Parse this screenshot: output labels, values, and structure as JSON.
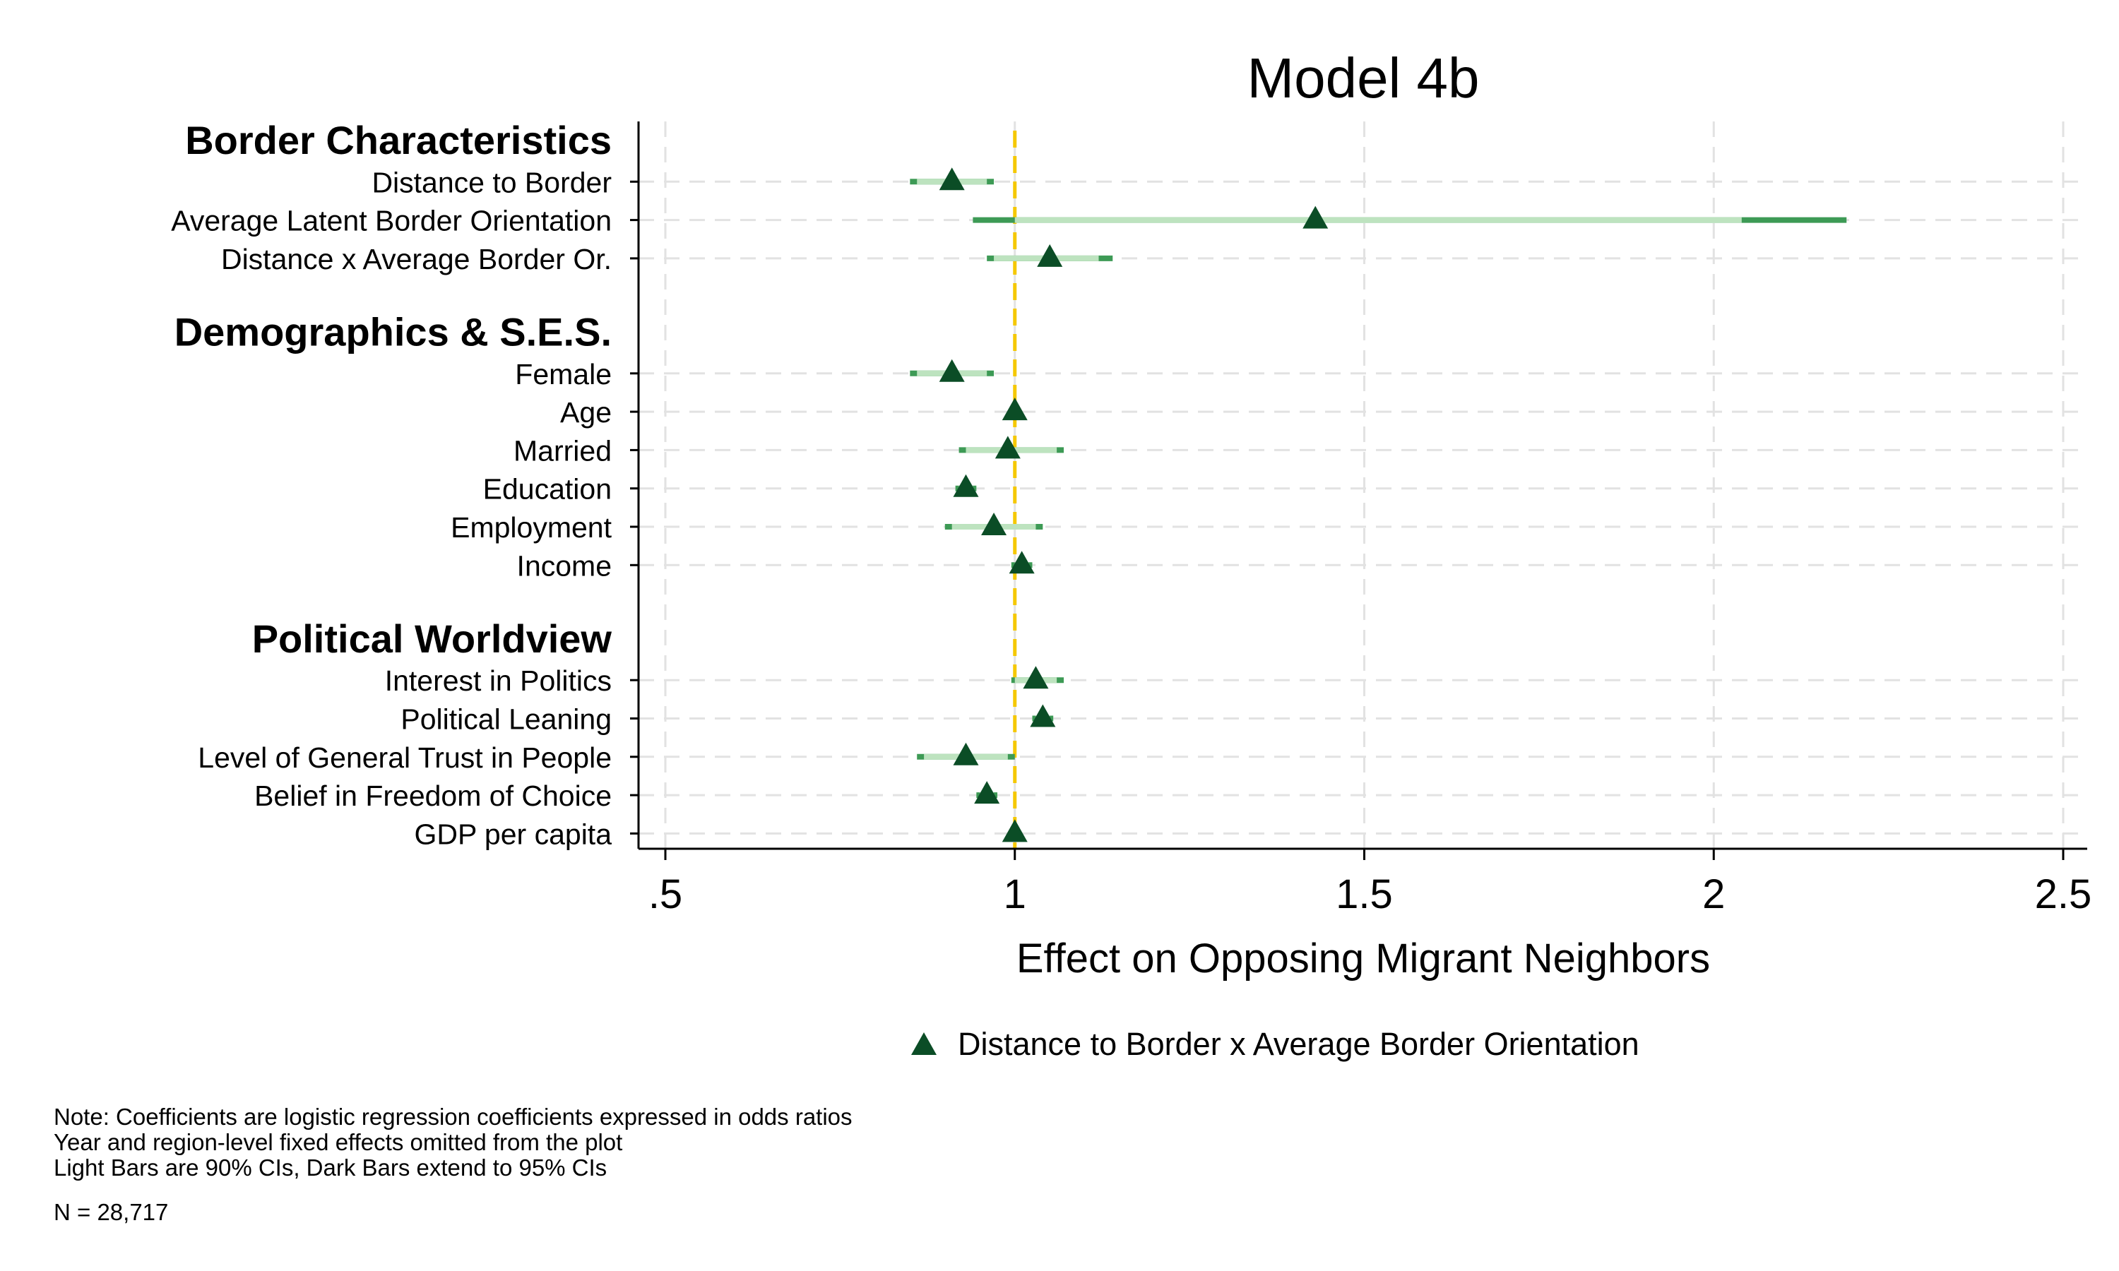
{
  "chart_data": {
    "type": "coefficient-plot",
    "title": "Model 4b",
    "xlabel": "Effect on Opposing Migrant Neighbors",
    "xlim": [
      0.5,
      2.5
    ],
    "xticks": [
      0.5,
      1,
      1.5,
      2,
      2.5
    ],
    "xtick_labels": [
      ".5",
      "1",
      "1.5",
      "2",
      "2.5"
    ],
    "reference_line": 1,
    "grid": true,
    "legend": {
      "placement": "bottom",
      "entries": [
        "Distance to Border x Average Border Orientation"
      ]
    },
    "colors": {
      "marker": "#0b4d26",
      "ci95": "#3d9a55",
      "ci90": "#bde3bf",
      "refline": "#f5c800",
      "grid": "#e2e2e2"
    },
    "groups": [
      {
        "heading": "Border Characteristics",
        "items": [
          {
            "label": "Distance to Border",
            "est": 0.91,
            "ci90": [
              0.86,
              0.96
            ],
            "ci95": [
              0.85,
              0.97
            ]
          },
          {
            "label": "Average Latent Border Orientation",
            "est": 1.43,
            "ci90": [
              1.0,
              2.04
            ],
            "ci95": [
              0.94,
              2.19
            ]
          },
          {
            "label": "Distance x Average Border Or.",
            "est": 1.05,
            "ci90": [
              0.97,
              1.12
            ],
            "ci95": [
              0.96,
              1.14
            ]
          }
        ]
      },
      {
        "heading": "Demographics & S.E.S.",
        "items": [
          {
            "label": "Female",
            "est": 0.91,
            "ci90": [
              0.86,
              0.96
            ],
            "ci95": [
              0.85,
              0.97
            ]
          },
          {
            "label": "Age",
            "est": 1.0,
            "ci90": [
              0.995,
              1.005
            ],
            "ci95": [
              0.993,
              1.007
            ]
          },
          {
            "label": "Married",
            "est": 0.99,
            "ci90": [
              0.93,
              1.06
            ],
            "ci95": [
              0.92,
              1.07
            ]
          },
          {
            "label": "Education",
            "est": 0.93,
            "ci90": [
              0.92,
              0.94
            ],
            "ci95": [
              0.915,
              0.945
            ]
          },
          {
            "label": "Employment",
            "est": 0.97,
            "ci90": [
              0.91,
              1.03
            ],
            "ci95": [
              0.9,
              1.04
            ]
          },
          {
            "label": "Income",
            "est": 1.01,
            "ci90": [
              1.0,
              1.02
            ],
            "ci95": [
              0.995,
              1.025
            ]
          }
        ]
      },
      {
        "heading": "Political Worldview",
        "items": [
          {
            "label": "Interest in Politics",
            "est": 1.03,
            "ci90": [
              1.0,
              1.06
            ],
            "ci95": [
              0.995,
              1.07
            ]
          },
          {
            "label": "Political Leaning",
            "est": 1.04,
            "ci90": [
              1.03,
              1.05
            ],
            "ci95": [
              1.025,
              1.055
            ]
          },
          {
            "label": "Level of General Trust in People",
            "est": 0.93,
            "ci90": [
              0.87,
              0.99
            ],
            "ci95": [
              0.86,
              1.0
            ]
          },
          {
            "label": "Belief in Freedom of Choice",
            "est": 0.96,
            "ci90": [
              0.95,
              0.97
            ],
            "ci95": [
              0.945,
              0.975
            ]
          },
          {
            "label": "GDP per capita",
            "est": 1.0,
            "ci90": [
              0.995,
              1.005
            ],
            "ci95": [
              0.993,
              1.007
            ]
          }
        ]
      }
    ]
  },
  "notes": {
    "line1": "Note: Coefficients are logistic regression coefficients expressed in odds ratios",
    "line2": "Year and region-level fixed effects omitted from the plot",
    "line3": "Light Bars are 90% CIs, Dark Bars extend to 95% CIs",
    "n": "N = 28,717"
  }
}
